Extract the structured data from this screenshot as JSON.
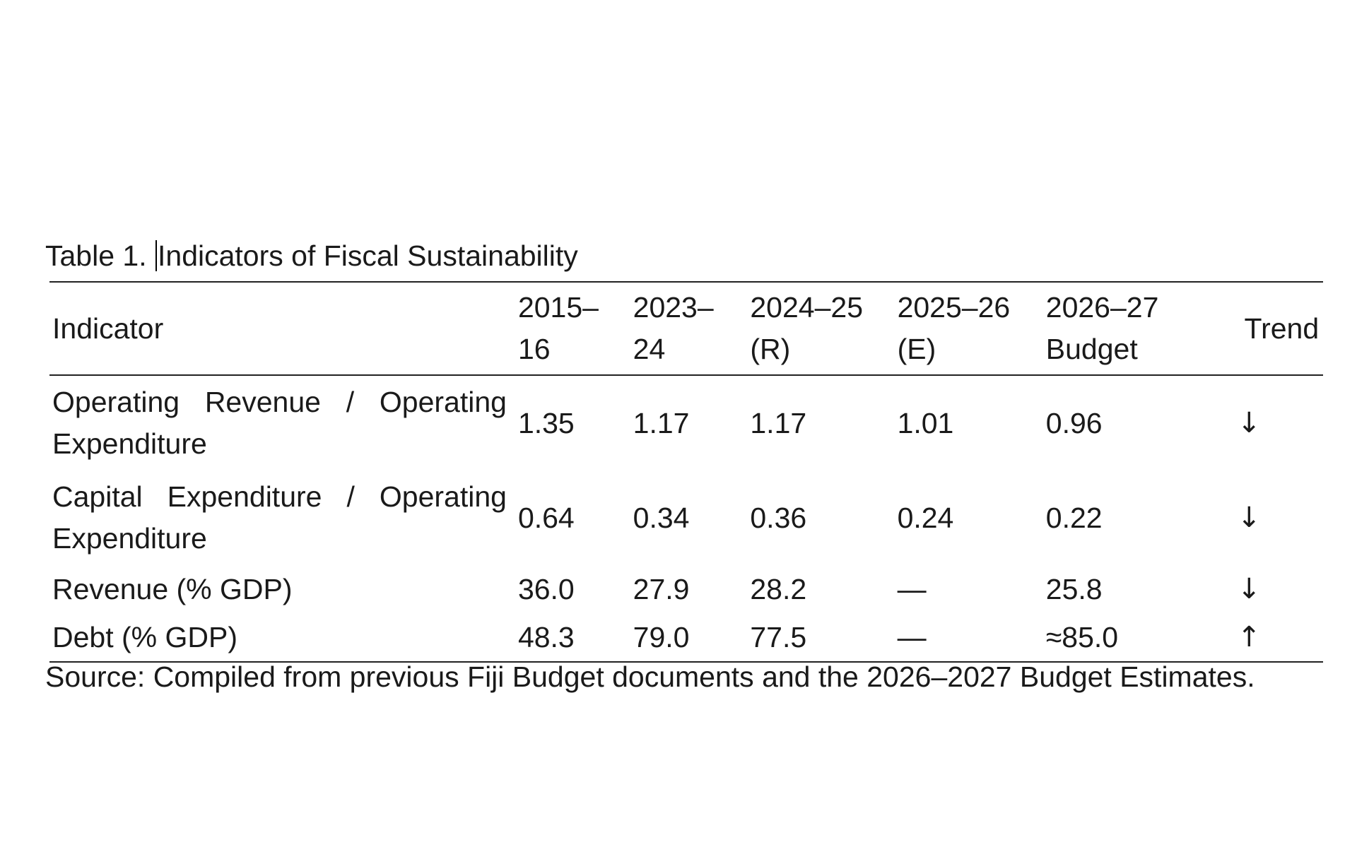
{
  "caption": {
    "prefix": "Table 1. ",
    "title": "Indicators of Fiscal Sustainability"
  },
  "table": {
    "headers": {
      "indicator": "Indicator",
      "y1": "2015–16",
      "y2": "2023–24",
      "y3": "2024–25 (R)",
      "y4": "2025–26 (E)",
      "y5": "2026–27 Budget",
      "trend": "Trend"
    },
    "rows": [
      {
        "indicator": "Operating Revenue / Operating Expenditure",
        "y1": "1.35",
        "y2": "1.17",
        "y3": "1.17",
        "y4": "1.01",
        "y5": "0.96",
        "trend": "↓"
      },
      {
        "indicator": "Capital Expenditure / Operating Expenditure",
        "y1": "0.64",
        "y2": "0.34",
        "y3": "0.36",
        "y4": "0.24",
        "y5": "0.22",
        "trend": "↓"
      },
      {
        "indicator": "Revenue (% GDP)",
        "y1": "36.0",
        "y2": "27.9",
        "y3": "28.2",
        "y4": "—",
        "y5": "25.8",
        "trend": "↓"
      },
      {
        "indicator": "Debt (% GDP)",
        "y1": "48.3",
        "y2": "79.0",
        "y3": "77.5",
        "y4": "—",
        "y5": "≈85.0",
        "trend": "↑"
      }
    ]
  },
  "source": "Source: Compiled from previous Fiji Budget documents and the 2026–2027 Budget Estimates."
}
